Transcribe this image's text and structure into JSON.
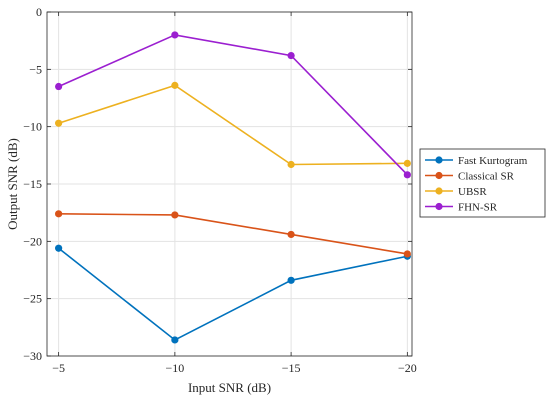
{
  "chart_data": {
    "type": "line",
    "title": "",
    "xlabel": "Input SNR (dB)",
    "ylabel": "Output SNR (dB)",
    "x": [
      -5,
      -10,
      -15,
      -20
    ],
    "x_tick_labels": [
      "−5",
      "−10",
      "−15",
      "−20"
    ],
    "x_axis_reversed": true,
    "xlim": [
      -4.5,
      -20.2
    ],
    "ylim": [
      -30,
      0
    ],
    "y_ticks": [
      0,
      -5,
      -10,
      -15,
      -20,
      -25,
      -30
    ],
    "y_tick_labels": [
      "0",
      "−5",
      "−10",
      "−15",
      "−20",
      "−25",
      "−30"
    ],
    "grid": true,
    "legend_position": "outside-right",
    "series": [
      {
        "name": "Fast Kurtogram",
        "color": "#0072BD",
        "values": [
          -20.6,
          -28.6,
          -23.4,
          -21.3
        ]
      },
      {
        "name": "Classical SR",
        "color": "#D95319",
        "values": [
          -17.6,
          -17.7,
          -19.4,
          -21.1
        ]
      },
      {
        "name": "UBSR",
        "color": "#EDB120",
        "values": [
          -9.7,
          -6.4,
          -13.3,
          -13.2
        ]
      },
      {
        "name": "FHN-SR",
        "color": "#9B1FD0",
        "values": [
          -6.5,
          -2.0,
          -3.8,
          -14.2
        ]
      }
    ]
  }
}
